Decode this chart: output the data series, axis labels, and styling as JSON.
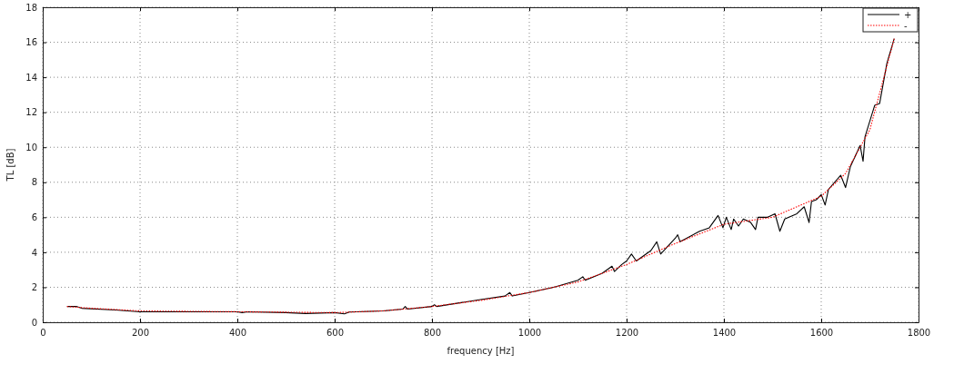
{
  "chart_data": {
    "type": "line",
    "xlabel": "frequency [Hz]",
    "ylabel": "TL [dB]",
    "xlim": [
      0,
      1800
    ],
    "ylim": [
      0,
      18
    ],
    "xticks": [
      0,
      200,
      400,
      600,
      800,
      1000,
      1200,
      1400,
      1600,
      1800
    ],
    "yticks": [
      0,
      2,
      4,
      6,
      8,
      10,
      12,
      14,
      16,
      18
    ],
    "grid": true,
    "legend": "top right",
    "series": [
      {
        "name": "+",
        "color": "#000000",
        "line_style": "solid",
        "x": [
          50,
          70,
          80,
          150,
          200,
          300,
          400,
          410,
          420,
          500,
          540,
          600,
          620,
          630,
          700,
          740,
          745,
          750,
          800,
          805,
          810,
          900,
          950,
          960,
          965,
          1000,
          1050,
          1100,
          1110,
          1115,
          1150,
          1170,
          1175,
          1190,
          1200,
          1210,
          1220,
          1250,
          1262,
          1270,
          1300,
          1305,
          1310,
          1350,
          1370,
          1388,
          1398,
          1405,
          1415,
          1420,
          1430,
          1440,
          1455,
          1465,
          1470,
          1490,
          1505,
          1515,
          1525,
          1550,
          1565,
          1575,
          1580,
          1590,
          1600,
          1608,
          1615,
          1640,
          1650,
          1660,
          1680,
          1686,
          1690,
          1710,
          1720,
          1735,
          1750
        ],
        "values": [
          0.9,
          0.9,
          0.8,
          0.7,
          0.6,
          0.6,
          0.6,
          0.55,
          0.6,
          0.55,
          0.5,
          0.55,
          0.48,
          0.58,
          0.65,
          0.75,
          0.9,
          0.75,
          0.9,
          1.0,
          0.9,
          1.3,
          1.5,
          1.7,
          1.5,
          1.7,
          2.0,
          2.4,
          2.6,
          2.4,
          2.8,
          3.2,
          2.9,
          3.3,
          3.5,
          3.9,
          3.5,
          4.1,
          4.6,
          3.9,
          4.8,
          5.0,
          4.6,
          5.2,
          5.4,
          6.1,
          5.4,
          6.0,
          5.3,
          5.9,
          5.5,
          5.9,
          5.7,
          5.3,
          6.0,
          6.0,
          6.2,
          5.2,
          5.9,
          6.2,
          6.6,
          5.7,
          6.9,
          7.0,
          7.3,
          6.7,
          7.6,
          8.4,
          7.7,
          8.9,
          10.1,
          9.2,
          10.6,
          12.4,
          12.5,
          14.8,
          16.2
        ]
      },
      {
        "name": "-",
        "color": "#ff0000",
        "line_style": "dotted",
        "x": [
          50,
          100,
          200,
          400,
          600,
          700,
          800,
          900,
          1000,
          1100,
          1200,
          1300,
          1400,
          1500,
          1600,
          1650,
          1700,
          1750
        ],
        "values": [
          0.9,
          0.8,
          0.65,
          0.6,
          0.55,
          0.65,
          0.9,
          1.25,
          1.7,
          2.3,
          3.3,
          4.5,
          5.6,
          6.0,
          7.2,
          8.5,
          11,
          16.2
        ]
      }
    ]
  }
}
